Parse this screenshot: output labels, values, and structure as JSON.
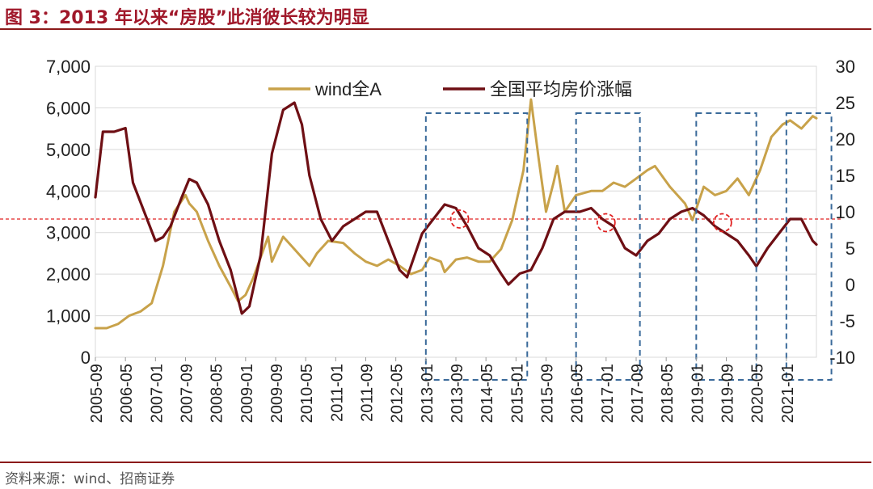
{
  "figure_title": "图 3：2013 年以来“房股”此消彼长较为明显",
  "source": "资料来源：wind、招商证券",
  "colors": {
    "wind": "#c8a24a",
    "house": "#6e0f14",
    "threshold": "#e02020",
    "box": "#3a6a9a",
    "circle": "#e02020",
    "rule": "#8b1a1a"
  },
  "chart_data": {
    "type": "line",
    "title": "2013 年以来“房股”此消彼长较为明显",
    "xlabel": "",
    "ylabel": "",
    "y2label": "",
    "ylim": [
      0,
      7000
    ],
    "yticks": [
      "7,000",
      "6,000",
      "5,000",
      "4,000",
      "3,000",
      "2,000",
      "1,000",
      "0"
    ],
    "y_tick_values": [
      7000,
      6000,
      5000,
      4000,
      3000,
      2000,
      1000,
      0
    ],
    "y2lim": [
      -10,
      30
    ],
    "y2ticks": [
      "30",
      "25",
      "20",
      "15",
      "10",
      "5",
      "0",
      "-5",
      "-10"
    ],
    "y2_tick_values": [
      30,
      25,
      20,
      15,
      10,
      5,
      0,
      -5,
      -10
    ],
    "x_range": [
      "2005-09",
      "2021-09"
    ],
    "x_tick_labels": [
      "2005-09",
      "2006-05",
      "2007-01",
      "2007-09",
      "2008-05",
      "2009-01",
      "2009-09",
      "2010-05",
      "2011-01",
      "2011-09",
      "2012-05",
      "2013-01",
      "2013-09",
      "2014-05",
      "2015-01",
      "2015-09",
      "2016-05",
      "2017-01",
      "2017-09",
      "2018-05",
      "2019-01",
      "2019-09",
      "2020-05",
      "2021-01"
    ],
    "threshold": {
      "axis": "y2",
      "value": 9
    },
    "highlight_periods": [
      {
        "start": "2013-01",
        "end": "2015-04"
      },
      {
        "start": "2016-05",
        "end": "2017-10"
      },
      {
        "start": "2019-01",
        "end": "2020-05"
      },
      {
        "start": "2021-01",
        "end": "2022-01"
      }
    ],
    "turning_points": [
      {
        "date": "2013-10",
        "value": 9
      },
      {
        "date": "2017-01",
        "value": 8.5
      },
      {
        "date": "2019-08",
        "value": 8.5
      }
    ],
    "series": [
      {
        "name": "wind全A",
        "axis": "y",
        "points": [
          [
            "2005-09",
            700
          ],
          [
            "2005-12",
            700
          ],
          [
            "2006-03",
            800
          ],
          [
            "2006-06",
            1000
          ],
          [
            "2006-09",
            1100
          ],
          [
            "2006-12",
            1300
          ],
          [
            "2007-03",
            2200
          ],
          [
            "2007-06",
            3500
          ],
          [
            "2007-09",
            3900
          ],
          [
            "2007-10",
            3700
          ],
          [
            "2007-12",
            3500
          ],
          [
            "2008-03",
            2800
          ],
          [
            "2008-06",
            2200
          ],
          [
            "2008-09",
            1700
          ],
          [
            "2008-11",
            1350
          ],
          [
            "2009-01",
            1500
          ],
          [
            "2009-03",
            1900
          ],
          [
            "2009-05",
            2400
          ],
          [
            "2009-07",
            2900
          ],
          [
            "2009-08",
            2300
          ],
          [
            "2009-09",
            2500
          ],
          [
            "2009-11",
            2900
          ],
          [
            "2010-01",
            2700
          ],
          [
            "2010-04",
            2400
          ],
          [
            "2010-06",
            2200
          ],
          [
            "2010-08",
            2500
          ],
          [
            "2010-11",
            2800
          ],
          [
            "2011-03",
            2750
          ],
          [
            "2011-06",
            2500
          ],
          [
            "2011-09",
            2300
          ],
          [
            "2011-12",
            2200
          ],
          [
            "2012-03",
            2350
          ],
          [
            "2012-06",
            2200
          ],
          [
            "2012-09",
            2000
          ],
          [
            "2012-12",
            2100
          ],
          [
            "2013-02",
            2400
          ],
          [
            "2013-05",
            2300
          ],
          [
            "2013-06",
            2050
          ],
          [
            "2013-09",
            2350
          ],
          [
            "2013-12",
            2400
          ],
          [
            "2014-03",
            2300
          ],
          [
            "2014-06",
            2300
          ],
          [
            "2014-09",
            2600
          ],
          [
            "2014-12",
            3300
          ],
          [
            "2015-03",
            4500
          ],
          [
            "2015-05",
            6200
          ],
          [
            "2015-07",
            4800
          ],
          [
            "2015-09",
            3500
          ],
          [
            "2015-11",
            4200
          ],
          [
            "2015-12",
            4600
          ],
          [
            "2016-02",
            3500
          ],
          [
            "2016-05",
            3900
          ],
          [
            "2016-09",
            4000
          ],
          [
            "2016-12",
            4000
          ],
          [
            "2017-03",
            4200
          ],
          [
            "2017-06",
            4100
          ],
          [
            "2017-09",
            4300
          ],
          [
            "2017-12",
            4500
          ],
          [
            "2018-02",
            4600
          ],
          [
            "2018-06",
            4100
          ],
          [
            "2018-10",
            3700
          ],
          [
            "2018-12",
            3300
          ],
          [
            "2019-03",
            4100
          ],
          [
            "2019-06",
            3900
          ],
          [
            "2019-09",
            4000
          ],
          [
            "2019-12",
            4300
          ],
          [
            "2020-03",
            3900
          ],
          [
            "2020-06",
            4500
          ],
          [
            "2020-09",
            5300
          ],
          [
            "2020-12",
            5600
          ],
          [
            "2021-02",
            5700
          ],
          [
            "2021-05",
            5500
          ],
          [
            "2021-08",
            5800
          ],
          [
            "2021-09",
            5750
          ]
        ]
      },
      {
        "name": "全国平均房价涨幅",
        "axis": "y2",
        "points": [
          [
            "2005-09",
            12
          ],
          [
            "2005-11",
            21
          ],
          [
            "2006-02",
            21
          ],
          [
            "2006-05",
            21.5
          ],
          [
            "2006-07",
            14
          ],
          [
            "2006-10",
            10
          ],
          [
            "2007-01",
            6
          ],
          [
            "2007-03",
            6.5
          ],
          [
            "2007-05",
            8
          ],
          [
            "2007-08",
            12
          ],
          [
            "2007-10",
            14.5
          ],
          [
            "2007-12",
            14
          ],
          [
            "2008-03",
            11
          ],
          [
            "2008-06",
            6
          ],
          [
            "2008-09",
            2
          ],
          [
            "2008-12",
            -4
          ],
          [
            "2009-02",
            -3
          ],
          [
            "2009-05",
            4
          ],
          [
            "2009-08",
            18
          ],
          [
            "2009-11",
            24
          ],
          [
            "2010-02",
            25
          ],
          [
            "2010-04",
            22
          ],
          [
            "2010-06",
            15
          ],
          [
            "2010-09",
            9
          ],
          [
            "2010-12",
            6
          ],
          [
            "2011-03",
            8
          ],
          [
            "2011-06",
            9
          ],
          [
            "2011-09",
            10
          ],
          [
            "2011-12",
            10
          ],
          [
            "2012-03",
            6
          ],
          [
            "2012-06",
            2
          ],
          [
            "2012-08",
            1
          ],
          [
            "2012-12",
            7
          ],
          [
            "2013-03",
            9
          ],
          [
            "2013-06",
            11
          ],
          [
            "2013-09",
            10.5
          ],
          [
            "2013-12",
            8
          ],
          [
            "2014-03",
            5
          ],
          [
            "2014-06",
            4
          ],
          [
            "2014-09",
            1.5
          ],
          [
            "2014-11",
            0
          ],
          [
            "2015-02",
            1.5
          ],
          [
            "2015-05",
            2
          ],
          [
            "2015-08",
            5
          ],
          [
            "2015-11",
            9
          ],
          [
            "2016-02",
            10
          ],
          [
            "2016-06",
            10
          ],
          [
            "2016-09",
            10.5
          ],
          [
            "2016-12",
            9
          ],
          [
            "2017-03",
            8
          ],
          [
            "2017-06",
            5
          ],
          [
            "2017-09",
            4
          ],
          [
            "2017-12",
            6
          ],
          [
            "2018-03",
            7
          ],
          [
            "2018-06",
            9
          ],
          [
            "2018-09",
            10
          ],
          [
            "2018-12",
            10.5
          ],
          [
            "2019-03",
            9.5
          ],
          [
            "2019-06",
            8
          ],
          [
            "2019-09",
            7
          ],
          [
            "2019-12",
            6
          ],
          [
            "2020-03",
            4
          ],
          [
            "2020-05",
            2.5
          ],
          [
            "2020-08",
            5
          ],
          [
            "2020-11",
            7
          ],
          [
            "2021-02",
            9
          ],
          [
            "2021-05",
            9
          ],
          [
            "2021-08",
            6
          ],
          [
            "2021-09",
            5.5
          ]
        ]
      }
    ]
  }
}
